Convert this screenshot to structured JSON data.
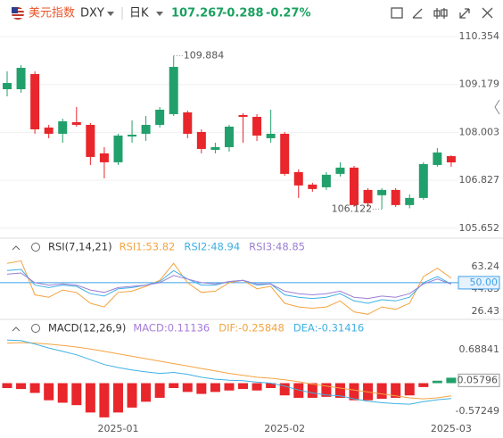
{
  "header": {
    "name": "美元指数",
    "symbol": "DXY",
    "period": "日K",
    "price": 107.267,
    "change": -0.288,
    "change_pct": "-0.27%"
  },
  "chart_data": [
    {
      "type": "candlestick",
      "up_color": "#22a06b",
      "down_color": "#e8262b",
      "open": [
        109.063,
        109.063,
        109.435,
        108.122,
        107.969,
        108.253,
        108.188,
        107.488,
        107.269,
        107.903,
        107.969,
        108.188,
        108.451,
        108.494,
        108.013,
        107.575,
        107.641,
        108.429,
        108.385,
        107.86,
        107.969,
        107.028,
        106.722,
        106.656,
        106.985,
        107.138,
        106.591,
        106.46,
        106.591,
        106.219,
        106.394,
        107.203,
        107.42
      ],
      "high": [
        109.501,
        109.654,
        109.501,
        108.188,
        108.341,
        108.625,
        108.232,
        107.641,
        107.969,
        108.297,
        108.407,
        108.625,
        109.884,
        108.538,
        108.078,
        107.75,
        108.188,
        108.472,
        108.451,
        108.56,
        108.013,
        107.094,
        106.766,
        107.028,
        107.269,
        107.181,
        106.635,
        106.635,
        106.635,
        106.482,
        107.269,
        107.619,
        107.44
      ],
      "low": [
        108.888,
        108.976,
        107.969,
        107.86,
        107.75,
        108.144,
        107.203,
        106.875,
        107.203,
        107.75,
        107.794,
        108.122,
        108.407,
        107.86,
        107.488,
        107.488,
        107.531,
        107.75,
        107.794,
        107.75,
        106.941,
        106.394,
        106.547,
        106.591,
        106.919,
        106.175,
        106.175,
        106.122,
        106.175,
        106.14,
        106.35,
        107.16,
        107.16
      ],
      "close": [
        109.216,
        109.588,
        108.078,
        107.969,
        108.275,
        108.188,
        107.4,
        107.269,
        107.925,
        107.947,
        108.188,
        108.56,
        109.61,
        107.969,
        107.597,
        107.641,
        108.144,
        108.385,
        107.925,
        107.969,
        106.985,
        106.7,
        106.613,
        106.963,
        107.138,
        106.219,
        106.263,
        106.591,
        106.219,
        106.394,
        107.225,
        107.51,
        107.267
      ],
      "max_label": 109.884,
      "min_label": 106.122,
      "ylim": [
        105.45,
        110.64
      ],
      "yticks": [
        110.354,
        109.179,
        108.003,
        106.827,
        105.652
      ],
      "grid": true
    },
    {
      "type": "line",
      "title": "RSI(7,14,21)",
      "series": [
        {
          "name": "RSI1:53.82",
          "color": "#f4a442",
          "values": [
            66,
            68,
            40,
            38,
            44,
            42,
            33,
            30,
            42,
            43,
            47,
            52,
            66,
            50,
            42,
            43,
            50,
            52,
            45,
            47,
            33,
            30,
            29,
            30,
            35,
            26,
            24,
            30,
            28,
            33,
            55,
            62,
            53.82
          ]
        },
        {
          "name": "RSI2:48.94",
          "color": "#3fb0e4",
          "values": [
            60,
            61,
            48,
            46,
            48,
            47,
            41,
            39,
            45,
            46,
            48,
            51,
            60,
            53,
            48,
            48,
            51,
            52,
            48,
            49,
            40,
            38,
            37,
            38,
            41,
            35,
            33,
            36,
            35,
            38,
            50,
            55,
            48.94
          ]
        },
        {
          "name": "RSI3:48.85",
          "color": "#9b7fd4",
          "values": [
            57,
            58,
            50,
            48,
            49,
            48,
            44,
            42,
            46,
            47,
            48,
            50,
            56,
            53,
            50,
            49,
            51,
            52,
            49,
            49,
            43,
            41,
            40,
            41,
            43,
            38,
            37,
            39,
            38,
            41,
            49,
            53,
            48.85
          ]
        }
      ],
      "highlight": {
        "value": 50,
        "label": "50.00"
      },
      "highlight_color": "#3fa0e8",
      "ylim": [
        22,
        72
      ],
      "yticks": [
        63.24,
        44.83,
        26.43
      ]
    },
    {
      "type": "combo",
      "title": "MACD(12,26,9)",
      "categories": [
        null,
        null,
        null,
        null,
        null,
        null,
        null,
        null,
        "2025-01",
        null,
        null,
        null,
        null,
        null,
        null,
        null,
        null,
        null,
        null,
        null,
        "2025-02",
        null,
        null,
        null,
        null,
        null,
        null,
        null,
        null,
        null,
        null,
        null,
        "2025-03"
      ],
      "up_color": "#22a06b",
      "down_color": "#e8262b",
      "series": [
        {
          "name": "MACD:0.11136",
          "color": "#a67bd8",
          "kind": "bar",
          "values": [
            -0.1,
            -0.12,
            -0.2,
            -0.35,
            -0.4,
            -0.45,
            -0.6,
            -0.7,
            -0.6,
            -0.5,
            -0.38,
            -0.3,
            -0.1,
            -0.18,
            -0.22,
            -0.18,
            -0.15,
            -0.12,
            -0.15,
            -0.1,
            -0.25,
            -0.3,
            -0.3,
            -0.28,
            -0.3,
            -0.35,
            -0.35,
            -0.32,
            -0.3,
            -0.25,
            -0.08,
            0.05,
            0.11136
          ]
        },
        {
          "name": "DIF:-0.25848",
          "color": "#f4a442",
          "kind": "line",
          "values": [
            0.82,
            0.83,
            0.82,
            0.8,
            0.77,
            0.74,
            0.7,
            0.65,
            0.6,
            0.55,
            0.5,
            0.45,
            0.4,
            0.35,
            0.3,
            0.25,
            0.2,
            0.16,
            0.12,
            0.1,
            0.07,
            0.03,
            -0.02,
            -0.06,
            -0.1,
            -0.14,
            -0.18,
            -0.22,
            -0.26,
            -0.3,
            -0.32,
            -0.3,
            -0.25848
          ]
        },
        {
          "name": "DEA:-0.31416",
          "color": "#3fb0e4",
          "kind": "line",
          "values": [
            0.88,
            0.87,
            0.8,
            0.72,
            0.65,
            0.58,
            0.48,
            0.38,
            0.32,
            0.27,
            0.23,
            0.2,
            0.22,
            0.18,
            0.12,
            0.08,
            0.06,
            0.05,
            0.02,
            0.0,
            -0.06,
            -0.14,
            -0.2,
            -0.24,
            -0.26,
            -0.32,
            -0.37,
            -0.4,
            -0.42,
            -0.43,
            -0.38,
            -0.34,
            -0.31416
          ]
        }
      ],
      "highlight": 0.05796,
      "ylim": [
        -0.83,
        0.94
      ],
      "yticks": [
        0.68841,
        -0.57249
      ]
    }
  ]
}
